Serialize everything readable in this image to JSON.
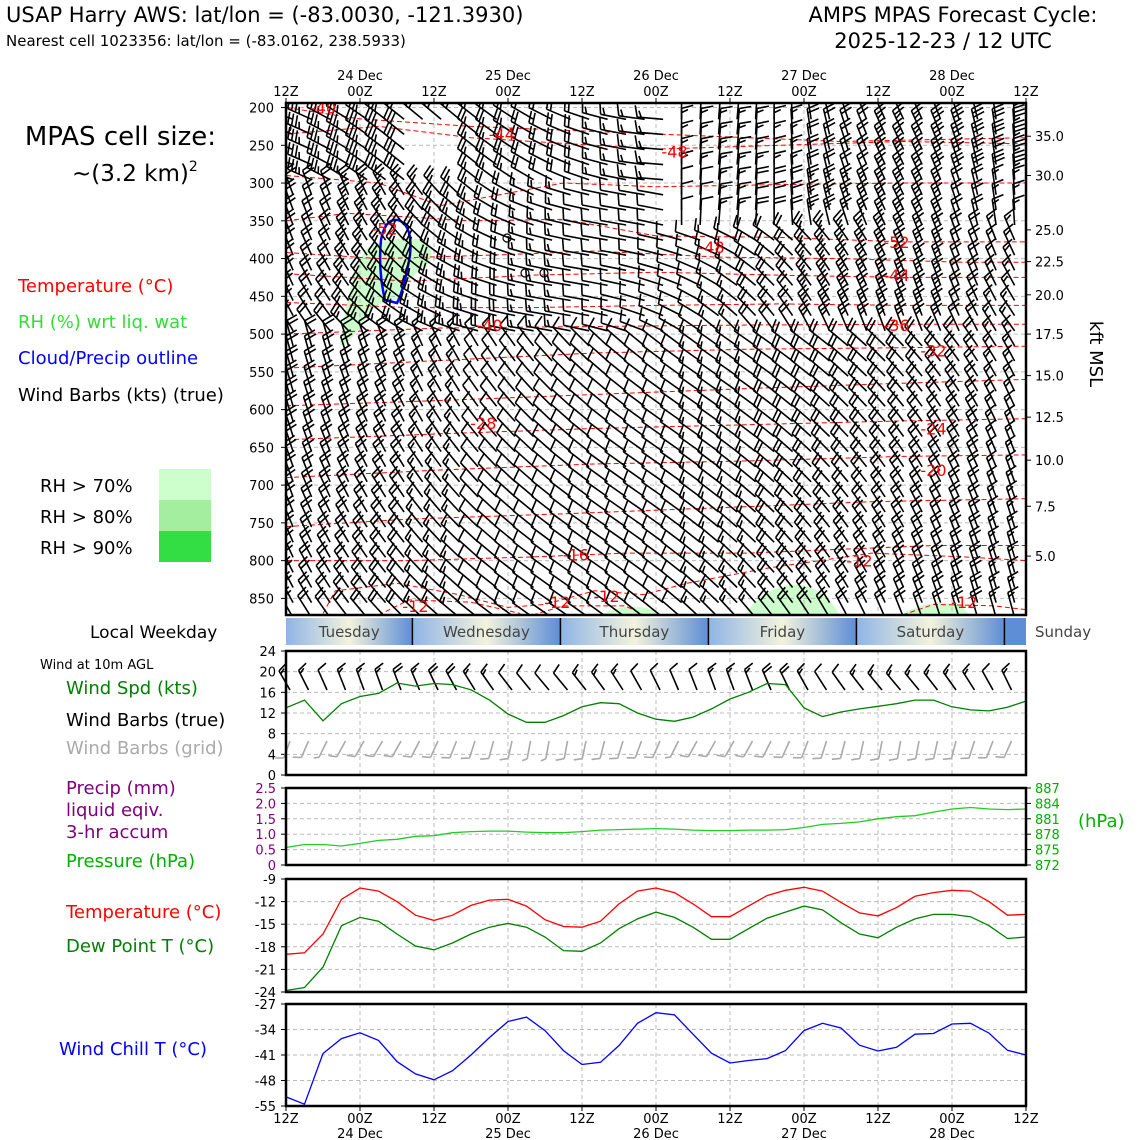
{
  "header": {
    "station": "USAP Harry AWS: lat/lon = (-83.0030, -121.3930)",
    "cell": "Nearest cell 1023356: lat/lon = (-83.0162, 238.5933)",
    "cycle_title": "AMPS MPAS Forecast Cycle:",
    "cycle_date": "2025-12-23 / 12 UTC"
  },
  "legend": {
    "cell_size_line1": "MPAS cell size:",
    "cell_size_line2": "~(3.2 km)",
    "cell_size_exp": "2",
    "temperature": "Temperature (°C)",
    "rh": "RH (%) wrt liq. wat",
    "cloud": "Cloud/Precip outline",
    "wind": "Wind Barbs (kts) (true)",
    "rh70": "RH > 70%",
    "rh80": "RH > 80%",
    "rh90": "RH > 90%",
    "local_weekday": "Local Weekday",
    "wind10m": "Wind at 10m AGL",
    "wind_spd": "Wind Spd (kts)",
    "wind_barbs_true": "Wind Barbs (true)",
    "wind_barbs_grid": "Wind Barbs (grid)",
    "precip1": "Precip (mm)",
    "precip2": "liquid eqiv.",
    "precip3": "3-hr accum",
    "pressure": "Pressure (hPa)",
    "temp2": "Temperature (°C)",
    "dewpoint": "Dew Point T (°C)",
    "windchill": "Wind Chill T (°C)",
    "kft_label": "kft MSL",
    "hpa_label": "(hPa)"
  },
  "colors": {
    "temperature": "#ff0000",
    "rh": "#22cc22",
    "cloud": "#0000ff",
    "wind": "#000000",
    "wind_grid": "#aaaaaa",
    "precip": "#800080",
    "pressure": "#00a000",
    "dewpoint": "#008000",
    "windchill": "#0000ff",
    "rh70": "#ccffcc",
    "rh80": "#a3ee9f",
    "rh90": "#33dd44"
  },
  "time_axis": {
    "tick_labels": [
      "12Z",
      "00Z",
      "12Z",
      "00Z",
      "12Z",
      "00Z",
      "12Z",
      "00Z",
      "12Z",
      "00Z",
      "12Z"
    ],
    "date_labels": [
      "24 Dec",
      "25 Dec",
      "26 Dec",
      "27 Dec",
      "28 Dec"
    ]
  },
  "weekdays": [
    "Tuesday",
    "Wednesday",
    "Thursday",
    "Friday",
    "Saturday",
    "Sunday"
  ],
  "chart_data": [
    {
      "type": "contour",
      "name": "vertical time section",
      "x_range_hours": [
        0,
        120
      ],
      "y_pressure_ticks": [
        "200",
        "250",
        "300",
        "350",
        "400",
        "450",
        "500",
        "550",
        "600",
        "650",
        "700",
        "750",
        "800",
        "850"
      ],
      "kft_ticks": [
        "35.0",
        "30.0",
        "25.0",
        "22.5",
        "20.0",
        "17.5",
        "15.0",
        "12.5",
        "10.0",
        "7.5",
        "5.0"
      ],
      "temp_labels": [
        {
          "t": 6,
          "p": 200,
          "v": "-40"
        },
        {
          "t": 35,
          "p": 235,
          "v": "-44"
        },
        {
          "t": 63,
          "p": 258,
          "v": "-48"
        },
        {
          "t": 16,
          "p": 360,
          "v": "-52"
        },
        {
          "t": 69,
          "p": 385,
          "v": "-48"
        },
        {
          "t": 99,
          "p": 378,
          "v": "-52"
        },
        {
          "t": 99,
          "p": 422,
          "v": "-44"
        },
        {
          "t": 33,
          "p": 488,
          "v": "-40"
        },
        {
          "t": 99,
          "p": 488,
          "v": "-36"
        },
        {
          "t": 105,
          "p": 522,
          "v": "-32"
        },
        {
          "t": 32,
          "p": 618,
          "v": "-28"
        },
        {
          "t": 105,
          "p": 625,
          "v": "-24"
        },
        {
          "t": 105,
          "p": 680,
          "v": "-20"
        },
        {
          "t": 47,
          "p": 792,
          "v": "-16"
        },
        {
          "t": 93,
          "p": 800,
          "v": "-12"
        },
        {
          "t": 21,
          "p": 860,
          "v": "-12"
        },
        {
          "t": 44,
          "p": 855,
          "v": "-12"
        },
        {
          "t": 52,
          "p": 847,
          "v": "-12"
        },
        {
          "t": 110,
          "p": 855,
          "v": "-12"
        }
      ]
    },
    {
      "type": "line",
      "name": "10m wind speed",
      "ylim": [
        0,
        24
      ],
      "y_ticks": [
        "0",
        "4",
        "8",
        "12",
        "16",
        "20",
        "24"
      ],
      "x_hours": [
        0,
        3,
        6,
        9,
        12,
        15,
        18,
        21,
        24,
        27,
        30,
        33,
        36,
        39,
        42,
        45,
        48,
        51,
        54,
        57,
        60,
        63,
        66,
        69,
        72,
        75,
        78,
        81,
        84,
        87,
        90,
        93,
        96,
        99,
        102,
        105,
        108,
        111,
        114,
        117,
        120
      ],
      "values": [
        13,
        14.5,
        10.5,
        13.8,
        15.2,
        15.8,
        17.8,
        17.2,
        17.7,
        17.5,
        16.5,
        14.5,
        11.8,
        10.2,
        10.2,
        11.5,
        13.2,
        14,
        13.8,
        12,
        10.8,
        10.4,
        11.2,
        12.8,
        14.7,
        16,
        17.7,
        17.5,
        13,
        11.3,
        12.2,
        12.8,
        13.3,
        13.8,
        14.5,
        14.5,
        13.2,
        12.6,
        12.4,
        13.1,
        14.3
      ]
    },
    {
      "type": "line",
      "name": "pressure",
      "ylim_hpa": [
        872,
        887
      ],
      "right_ticks": [
        "887",
        "884",
        "881",
        "878",
        "875",
        "872"
      ],
      "precip_ticks": [
        "2.5",
        "2.0",
        "1.5",
        "1.0",
        "0.5",
        "0"
      ],
      "x_hours": [
        0,
        3,
        6,
        9,
        12,
        15,
        18,
        21,
        24,
        27,
        30,
        33,
        36,
        39,
        42,
        45,
        48,
        51,
        54,
        57,
        60,
        63,
        66,
        69,
        72,
        75,
        78,
        81,
        84,
        87,
        90,
        93,
        96,
        99,
        102,
        105,
        108,
        111,
        114,
        117,
        120
      ],
      "values": [
        875.4,
        876.0,
        876.0,
        875.7,
        876.2,
        876.8,
        877.0,
        877.6,
        877.7,
        878.3,
        878.5,
        878.6,
        878.6,
        878.4,
        878.3,
        878.3,
        878.5,
        878.8,
        878.9,
        879.0,
        879.1,
        879.0,
        878.8,
        878.7,
        878.7,
        878.8,
        878.8,
        878.9,
        879.3,
        879.9,
        880.1,
        880.4,
        881.0,
        881.4,
        881.6,
        882.3,
        882.9,
        883.2,
        882.9,
        882.8,
        882.9
      ]
    },
    {
      "type": "line",
      "name": "temperature and dew point",
      "ylim": [
        -24,
        -9
      ],
      "y_ticks": [
        "-9",
        "-12",
        "-15",
        "-18",
        "-21",
        "-24"
      ],
      "x_hours": [
        0,
        3,
        6,
        9,
        12,
        15,
        18,
        21,
        24,
        27,
        30,
        33,
        36,
        39,
        42,
        45,
        48,
        51,
        54,
        57,
        60,
        63,
        66,
        69,
        72,
        75,
        78,
        81,
        84,
        87,
        90,
        93,
        96,
        99,
        102,
        105,
        108,
        111,
        114,
        117,
        120
      ],
      "series": [
        {
          "values": [
            -19,
            -18.8,
            -16.3,
            -11.7,
            -10.2,
            -10.6,
            -12,
            -13.8,
            -14.5,
            -13.8,
            -12.5,
            -11.8,
            -11.7,
            -12.6,
            -14.4,
            -15.3,
            -15.4,
            -14.6,
            -12.3,
            -10.6,
            -10.2,
            -10.8,
            -12.3,
            -14,
            -14,
            -12.6,
            -11.2,
            -10.5,
            -10.1,
            -10.6,
            -12.1,
            -13.5,
            -13.9,
            -12.8,
            -11.3,
            -10.8,
            -10.5,
            -10.6,
            -12,
            -13.8,
            -13.7
          ]
        },
        {
          "values": [
            -23.8,
            -23.4,
            -20.7,
            -15.2,
            -14.1,
            -14.6,
            -16.3,
            -17.9,
            -18.4,
            -17.5,
            -16.3,
            -15.4,
            -14.9,
            -15.4,
            -16.7,
            -18.5,
            -18.6,
            -17.5,
            -15.6,
            -14.3,
            -13.4,
            -14.1,
            -15.4,
            -17,
            -17,
            -15.6,
            -14.2,
            -13.4,
            -12.6,
            -13.1,
            -14.8,
            -16.3,
            -16.8,
            -15.4,
            -14.3,
            -13.7,
            -13.7,
            -14,
            -15.2,
            -16.9,
            -16.7
          ]
        }
      ]
    },
    {
      "type": "line",
      "name": "wind chill",
      "ylim": [
        -55,
        -27
      ],
      "y_ticks": [
        "-27",
        "-34",
        "-41",
        "-48",
        "-55"
      ],
      "x_hours": [
        0,
        3,
        6,
        9,
        12,
        15,
        18,
        21,
        24,
        27,
        30,
        33,
        36,
        39,
        42,
        45,
        48,
        51,
        54,
        57,
        60,
        63,
        66,
        69,
        72,
        75,
        78,
        81,
        84,
        87,
        90,
        93,
        96,
        99,
        102,
        105,
        108,
        111,
        114,
        117,
        120
      ],
      "values": [
        -52.5,
        -54.5,
        -40.6,
        -36.5,
        -34.9,
        -37,
        -42.8,
        -46.2,
        -47.8,
        -45.3,
        -41,
        -36.2,
        -31.8,
        -30.6,
        -34.3,
        -39.8,
        -43.6,
        -43,
        -38.4,
        -32.3,
        -29.4,
        -30,
        -35.3,
        -40.5,
        -43.2,
        -42.5,
        -42,
        -39.8,
        -34.3,
        -32.3,
        -33.6,
        -38.3,
        -39.9,
        -38.9,
        -35.3,
        -35.1,
        -32.5,
        -32.3,
        -35,
        -39.7,
        -41
      ]
    }
  ]
}
